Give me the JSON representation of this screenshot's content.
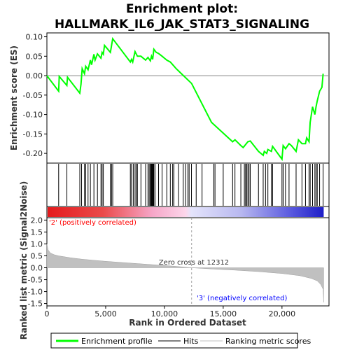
{
  "chart_data": {
    "type": "line",
    "title_line1": "Enrichment plot:",
    "title_line2": "HALLMARK_IL6_JAK_STAT3_SIGNALING",
    "es_panel": {
      "ylabel": "Enrichment score (ES)",
      "ylim": [
        -0.225,
        0.11
      ],
      "yticks": [
        "0.10",
        "0.05",
        "0.00",
        "-0.05",
        "-0.10",
        "-0.15",
        "-0.20"
      ],
      "ytick_values": [
        0.1,
        0.05,
        0.0,
        -0.05,
        -0.1,
        -0.15,
        -0.2
      ],
      "series": {
        "name": "Enrichment profile",
        "color": "#00ff00",
        "x": [
          0,
          1000,
          1050,
          1700,
          1750,
          2800,
          2900,
          3000,
          3200,
          3300,
          3500,
          3700,
          3800,
          4000,
          4100,
          4300,
          4600,
          4700,
          4800,
          4900,
          5400,
          5600,
          7100,
          7200,
          7300,
          7500,
          7700,
          8000,
          8400,
          8600,
          8800,
          8900,
          9000,
          9100,
          9300,
          9500,
          9800,
          10000,
          10200,
          10500,
          10800,
          11000,
          12312,
          14000,
          15800,
          16000,
          16500,
          16700,
          17100,
          17300,
          18000,
          18400,
          18500,
          18700,
          18800,
          19100,
          19200,
          20000,
          20100,
          20300,
          20600,
          20800,
          21200,
          21400,
          21700,
          22000,
          22100,
          22300,
          22400,
          22600,
          22800,
          22900,
          23000,
          23200,
          23400,
          23500
        ],
        "y": [
          0.0,
          -0.04,
          -0.002,
          -0.025,
          -0.004,
          -0.045,
          -0.022,
          0.018,
          0.005,
          0.024,
          0.015,
          0.04,
          0.028,
          0.055,
          0.04,
          0.056,
          0.045,
          0.06,
          0.055,
          0.078,
          0.06,
          0.095,
          0.035,
          0.042,
          0.035,
          0.062,
          0.05,
          0.05,
          0.04,
          0.047,
          0.038,
          0.05,
          0.042,
          0.068,
          0.06,
          0.057,
          0.05,
          0.045,
          0.04,
          0.035,
          0.025,
          0.018,
          -0.02,
          -0.12,
          -0.17,
          -0.165,
          -0.18,
          -0.185,
          -0.17,
          -0.168,
          -0.195,
          -0.205,
          -0.195,
          -0.2,
          -0.19,
          -0.195,
          -0.182,
          -0.215,
          -0.18,
          -0.188,
          -0.175,
          -0.18,
          -0.195,
          -0.165,
          -0.175,
          -0.175,
          -0.16,
          -0.17,
          -0.12,
          -0.08,
          -0.1,
          -0.08,
          -0.065,
          -0.04,
          -0.03,
          0.005
        ]
      }
    },
    "hits": {
      "name": "Hits",
      "positions": [
        1000,
        1700,
        2800,
        2950,
        3200,
        3300,
        3500,
        3700,
        4000,
        4300,
        4600,
        4700,
        4800,
        5400,
        5500,
        5600,
        7100,
        7200,
        7350,
        7500,
        7600,
        7700,
        8000,
        8400,
        8600,
        8700,
        8800,
        8850,
        8900,
        8950,
        9000,
        9050,
        9100,
        9200,
        9500,
        9800,
        10200,
        10500,
        10700,
        10800,
        11200,
        11600,
        11800,
        12000,
        12100,
        12300,
        12700,
        13200,
        14200,
        14300,
        15000,
        15800,
        16000,
        16500,
        16800,
        16900,
        17000,
        17100,
        17200,
        17300,
        18000,
        18400,
        18600,
        18800,
        19100,
        19200,
        20000,
        20100,
        20300,
        20600,
        21200,
        21700,
        22000,
        22300,
        22400,
        22600,
        22800,
        22900,
        23000,
        23200,
        23500
      ]
    },
    "ranked_panel": {
      "ylabel": "Ranked list metric (Signal2Noise)",
      "xlabel": "Rank in Ordered Dataset",
      "ylim": [
        -1.6,
        2.1
      ],
      "yticks": [
        "2.0",
        "1.5",
        "1.0",
        "0.5",
        "0.0",
        "-0.5",
        "-1.0",
        "-1.5"
      ],
      "ytick_values": [
        2.0,
        1.5,
        1.0,
        0.5,
        0.0,
        -0.5,
        -1.0,
        -1.5
      ],
      "x": [
        0,
        100,
        300,
        600,
        1000,
        2000,
        3000,
        5000,
        7000,
        9000,
        11000,
        12312,
        14000,
        16000,
        18000,
        20000,
        21500,
        22500,
        23000,
        23300,
        23500,
        23550
      ],
      "values": [
        1.0,
        0.75,
        0.62,
        0.55,
        0.5,
        0.42,
        0.36,
        0.27,
        0.2,
        0.13,
        0.06,
        0.0,
        -0.05,
        -0.1,
        -0.16,
        -0.24,
        -0.33,
        -0.45,
        -0.55,
        -0.7,
        -0.9,
        -1.45
      ],
      "zero_cross_label": "Zero cross at 12312",
      "zero_cross": 12312,
      "pos_label": "'2' (positively correlated)",
      "neg_label": "'3' (negatively correlated)",
      "fill_color": "#c0c0c0"
    },
    "x_axis": {
      "xlim": [
        0,
        24000
      ],
      "xticks": [
        "0",
        "5,000",
        "10,000",
        "15,000",
        "20,000"
      ],
      "xtick_values": [
        0,
        5000,
        10000,
        15000,
        20000
      ],
      "n_genes": 23550
    },
    "legend": {
      "items": [
        {
          "label": "Enrichment profile",
          "color": "#00ff00",
          "kind": "line-thick"
        },
        {
          "label": "Hits",
          "color": "#000000",
          "kind": "line-thin"
        },
        {
          "label": "Ranking metric scores",
          "color": "#c0c0c0",
          "kind": "line-thin"
        }
      ]
    },
    "colors": {
      "pos_label": "#ff0000",
      "neg_label": "#0000ff",
      "zero_line": "#a0a0a0"
    }
  }
}
